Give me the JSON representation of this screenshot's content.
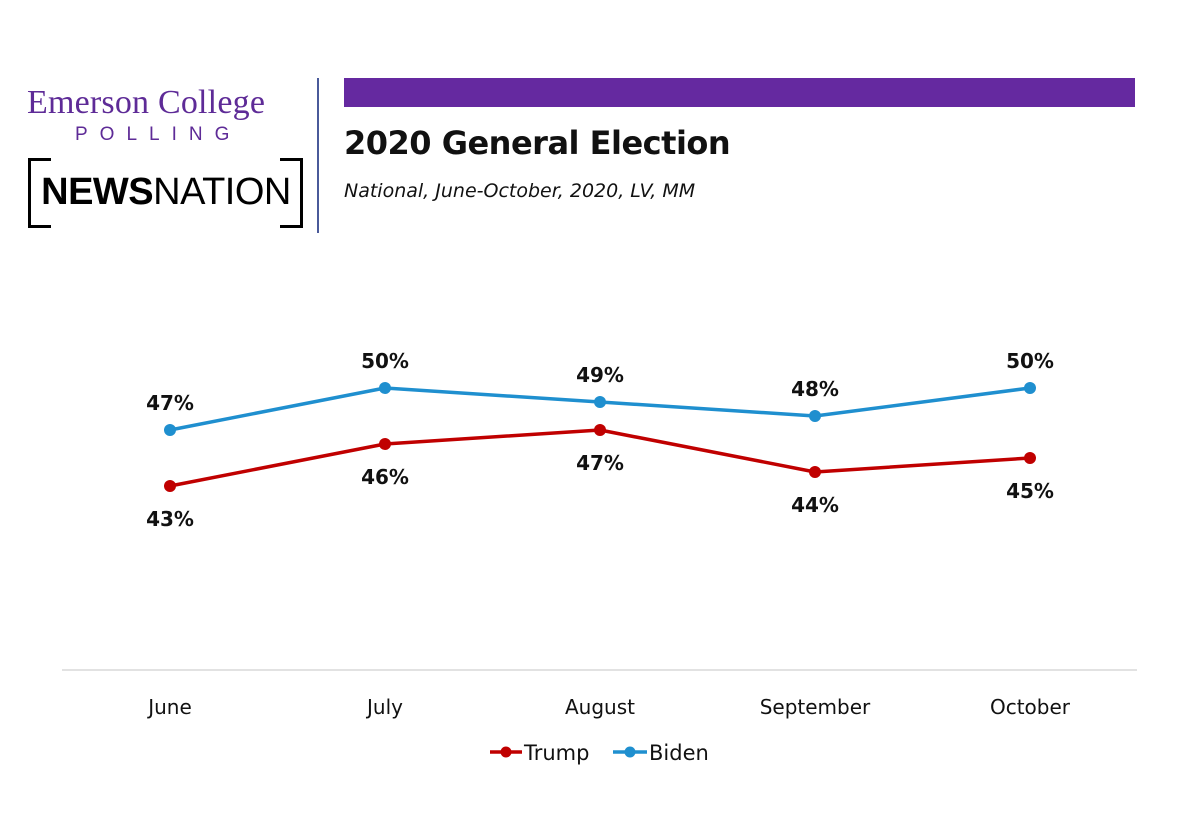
{
  "branding": {
    "emerson": "Emerson College",
    "polling": "POLLING",
    "news_bold": "NEWS",
    "news_light": "NATION"
  },
  "header": {
    "title": "2020 General Election",
    "subtitle": "National, June-October, 2020, LV, MM"
  },
  "colors": {
    "brand_purple": "#6529a0",
    "trump": "#c00000",
    "biden": "#1f8fcf"
  },
  "chart_data": {
    "type": "line",
    "categories": [
      "June",
      "July",
      "August",
      "September",
      "October"
    ],
    "series": [
      {
        "name": "Trump",
        "color": "#c00000",
        "values": [
          43,
          46,
          47,
          44,
          45
        ],
        "labels": [
          "43%",
          "46%",
          "47%",
          "44%",
          "45%"
        ]
      },
      {
        "name": "Biden",
        "color": "#1f8fcf",
        "values": [
          47,
          50,
          49,
          48,
          50
        ],
        "labels": [
          "47%",
          "50%",
          "49%",
          "48%",
          "50%"
        ]
      }
    ],
    "legend": "bottom-center",
    "grid": false
  }
}
